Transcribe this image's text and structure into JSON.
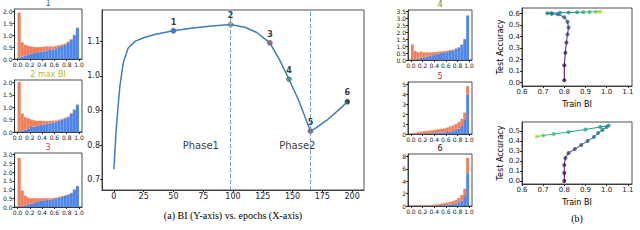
{
  "chart_data": [
    {
      "type": "histogram",
      "title": "1",
      "color": "#2255cc",
      "stacked": true,
      "bins": [
        0,
        0.05,
        0.1,
        0.15,
        0.2,
        0.25,
        0.3,
        0.35,
        0.4,
        0.45,
        0.5,
        0.55,
        0.6,
        0.65,
        0.7,
        0.75,
        0.8,
        0.85,
        0.9,
        0.95,
        1
      ],
      "series": [
        {
          "color": "#4f86e8",
          "values": [
            0.05,
            0.1,
            0.15,
            0.2,
            0.22,
            0.25,
            0.28,
            0.3,
            0.32,
            0.35,
            0.38,
            0.4,
            0.45,
            0.5,
            0.55,
            0.6,
            0.7,
            0.8,
            1.0,
            1.3
          ]
        },
        {
          "color": "#f07f5a",
          "values": [
            1.9,
            0.6,
            0.45,
            0.35,
            0.3,
            0.25,
            0.22,
            0.2,
            0.2,
            0.18,
            0.15,
            0.12,
            0.1,
            0.08,
            0.06,
            0.05,
            0.04,
            0.03,
            0.02,
            0.02
          ]
        }
      ],
      "xlim": [
        -0.05,
        1.05
      ],
      "xticks": [
        {
          "value": 0,
          "label": "0.0"
        },
        0.2,
        0.4,
        0.6,
        0.8,
        {
          "value": 1,
          "label": "1.0"
        }
      ],
      "ylim": [
        0,
        2.1
      ],
      "yticks": [
        {
          "value": 0,
          "label": "0.0"
        },
        0.5,
        {
          "value": 1,
          "label": "1.0"
        },
        1.5,
        {
          "value": 2,
          "label": "2.0"
        }
      ]
    },
    {
      "type": "histogram",
      "title": "2 max BI",
      "color": "#b8b52a",
      "stacked": true,
      "bins": [
        0,
        0.05,
        0.1,
        0.15,
        0.2,
        0.25,
        0.3,
        0.35,
        0.4,
        0.45,
        0.5,
        0.55,
        0.6,
        0.65,
        0.7,
        0.75,
        0.8,
        0.85,
        0.9,
        0.95,
        1
      ],
      "series": [
        {
          "color": "#4f86e8",
          "values": [
            0.02,
            0.05,
            0.1,
            0.15,
            0.2,
            0.22,
            0.25,
            0.28,
            0.3,
            0.32,
            0.35,
            0.38,
            0.4,
            0.45,
            0.5,
            0.55,
            0.6,
            0.75,
            0.9,
            1.1
          ]
        },
        {
          "color": "#f07f5a",
          "values": [
            2.0,
            0.7,
            0.5,
            0.4,
            0.3,
            0.25,
            0.2,
            0.18,
            0.15,
            0.12,
            0.1,
            0.08,
            0.06,
            0.05,
            0.04,
            0.03,
            0.02,
            0.02,
            0.01,
            0.01
          ]
        }
      ],
      "xlim": [
        -0.05,
        1.05
      ],
      "xticks": [
        {
          "value": 0,
          "label": "0.0"
        },
        0.2,
        0.4,
        0.6,
        0.8,
        {
          "value": 1,
          "label": "1.0"
        }
      ],
      "ylim": [
        0,
        2.1
      ],
      "yticks": [
        {
          "value": 0,
          "label": "0.0"
        },
        0.5,
        {
          "value": 1,
          "label": "1.0"
        },
        1.5,
        {
          "value": 2,
          "label": "2.0"
        }
      ]
    },
    {
      "type": "histogram",
      "title": "3",
      "color": "#e0403a",
      "stacked": true,
      "bins": [
        0,
        0.05,
        0.1,
        0.15,
        0.2,
        0.25,
        0.3,
        0.35,
        0.4,
        0.45,
        0.5,
        0.55,
        0.6,
        0.65,
        0.7,
        0.75,
        0.8,
        0.85,
        0.9,
        0.95,
        1
      ],
      "series": [
        {
          "color": "#4f86e8",
          "values": [
            0.02,
            0.05,
            0.1,
            0.15,
            0.2,
            0.25,
            0.3,
            0.35,
            0.38,
            0.4,
            0.42,
            0.45,
            0.5,
            0.55,
            0.6,
            0.65,
            0.7,
            0.8,
            1.0,
            1.2
          ]
        },
        {
          "color": "#f07f5a",
          "values": [
            2.8,
            0.9,
            0.55,
            0.4,
            0.3,
            0.25,
            0.2,
            0.15,
            0.12,
            0.1,
            0.08,
            0.06,
            0.05,
            0.04,
            0.03,
            0.02,
            0.02,
            0.01,
            0.01,
            0.01
          ]
        }
      ],
      "xlim": [
        -0.05,
        1.05
      ],
      "xticks": [
        {
          "value": 0,
          "label": "0.0"
        },
        0.2,
        0.4,
        0.6,
        0.8,
        {
          "value": 1,
          "label": "1.0"
        }
      ],
      "ylim": [
        0,
        3.1
      ],
      "yticks": [
        {
          "value": 0,
          "label": "0.0"
        },
        0.5,
        {
          "value": 1,
          "label": "1.0"
        },
        1.5,
        {
          "value": 2,
          "label": "2.0"
        },
        2.5,
        {
          "value": 3,
          "label": "3.0"
        }
      ]
    },
    {
      "type": "line",
      "xlabel": "(a) BI (Y-axis) vs. epochs (X-axis)",
      "color": "#3b7dbf",
      "line_style": "solid",
      "x": [
        0,
        2,
        5,
        8,
        12,
        18,
        25,
        35,
        50,
        65,
        80,
        98,
        110,
        120,
        131,
        140,
        147,
        155,
        160,
        165,
        170,
        180,
        190,
        196
      ],
      "values": [
        0.73,
        0.85,
        0.97,
        1.04,
        1.08,
        1.1,
        1.11,
        1.12,
        1.13,
        1.137,
        1.143,
        1.148,
        1.14,
        1.125,
        1.095,
        1.04,
        0.99,
        0.93,
        0.885,
        0.84,
        0.85,
        0.875,
        0.905,
        0.925
      ],
      "points": [
        {
          "label": "1",
          "x": 50,
          "y": 1.13,
          "color": "#2255cc"
        },
        {
          "label": "2",
          "x": 98,
          "y": 1.148,
          "color": "#b8b52a"
        },
        {
          "label": "3",
          "x": 131,
          "y": 1.095,
          "color": "#e0403a"
        },
        {
          "label": "4",
          "x": 147,
          "y": 0.99,
          "color": "#3da23d"
        },
        {
          "label": "5",
          "x": 165,
          "y": 0.84,
          "color": "#c0392b"
        },
        {
          "label": "6",
          "x": 196,
          "y": 0.925,
          "color": "#111111"
        }
      ],
      "vlines": [
        98,
        165
      ],
      "annotations": [
        {
          "text": "Phase1",
          "x": 73,
          "y": 0.8
        },
        {
          "text": "Phase2",
          "x": 154,
          "y": 0.8
        }
      ],
      "xlim": [
        -10,
        210
      ],
      "xticks": [
        0,
        25,
        50,
        75,
        100,
        125,
        150,
        175,
        200
      ],
      "ylim": [
        0.67,
        1.19
      ],
      "yticks": [
        0.7,
        0.8,
        0.9,
        {
          "value": 1,
          "label": "1.0"
        },
        1.1
      ]
    },
    {
      "type": "histogram",
      "title": "4",
      "color": "#3da23d",
      "stacked": true,
      "bins": [
        0,
        0.05,
        0.1,
        0.15,
        0.2,
        0.25,
        0.3,
        0.35,
        0.4,
        0.45,
        0.5,
        0.55,
        0.6,
        0.65,
        0.7,
        0.75,
        0.8,
        0.85,
        0.9,
        0.95,
        1
      ],
      "series": [
        {
          "color": "#4f86e8",
          "values": [
            0.02,
            0.05,
            0.1,
            0.15,
            0.2,
            0.25,
            0.3,
            0.35,
            0.4,
            0.45,
            0.5,
            0.55,
            0.6,
            0.65,
            0.7,
            0.8,
            0.9,
            1.1,
            1.5,
            3.2
          ]
        },
        {
          "color": "#f07f5a",
          "values": [
            1.1,
            0.6,
            0.45,
            0.45,
            0.35,
            0.3,
            0.25,
            0.2,
            0.18,
            0.15,
            0.12,
            0.1,
            0.08,
            0.06,
            0.05,
            0.04,
            0.03,
            0.02,
            0.02,
            0.01
          ]
        }
      ],
      "xlim": [
        -0.05,
        1.05
      ],
      "xticks": [
        {
          "value": 0,
          "label": "0.0"
        },
        0.2,
        0.4,
        0.6,
        0.8,
        {
          "value": 1,
          "label": "1.0"
        }
      ],
      "ylim": [
        0,
        3.6
      ],
      "yticks": [
        {
          "value": 0,
          "label": "0.0"
        },
        0.5,
        {
          "value": 1,
          "label": "1.0"
        },
        1.5,
        {
          "value": 2,
          "label": "2.0"
        },
        2.5,
        {
          "value": 3,
          "label": "3.0"
        },
        3.5
      ]
    },
    {
      "type": "histogram",
      "title": "5",
      "color": "#c0392b",
      "stacked": true,
      "bins": [
        0,
        0.05,
        0.1,
        0.15,
        0.2,
        0.25,
        0.3,
        0.35,
        0.4,
        0.45,
        0.5,
        0.55,
        0.6,
        0.65,
        0.7,
        0.75,
        0.8,
        0.85,
        0.9,
        0.95,
        1
      ],
      "series": [
        {
          "color": "#4f86e8",
          "values": [
            0.01,
            0.02,
            0.03,
            0.04,
            0.05,
            0.06,
            0.07,
            0.08,
            0.1,
            0.12,
            0.14,
            0.16,
            0.2,
            0.25,
            0.3,
            0.4,
            0.55,
            0.8,
            1.4,
            3.9
          ]
        },
        {
          "color": "#f07f5a",
          "values": [
            0.05,
            0.1,
            0.15,
            0.2,
            0.22,
            0.25,
            0.28,
            0.3,
            0.32,
            0.35,
            0.38,
            0.4,
            0.45,
            0.5,
            0.55,
            0.6,
            0.65,
            0.7,
            0.75,
            0.9
          ]
        }
      ],
      "xlim": [
        -0.05,
        1.05
      ],
      "xticks": [
        {
          "value": 0,
          "label": "0.0"
        },
        0.2,
        0.4,
        0.6,
        0.8,
        {
          "value": 1,
          "label": "1.0"
        }
      ],
      "ylim": [
        0,
        5.2
      ],
      "yticks": [
        0,
        1,
        2,
        3,
        4,
        5
      ]
    },
    {
      "type": "histogram",
      "title": "6",
      "color": "#111111",
      "stacked": true,
      "bins": [
        0,
        0.05,
        0.1,
        0.15,
        0.2,
        0.25,
        0.3,
        0.35,
        0.4,
        0.45,
        0.5,
        0.55,
        0.6,
        0.65,
        0.7,
        0.75,
        0.8,
        0.85,
        0.9,
        0.95,
        1
      ],
      "series": [
        {
          "color": "#4f86e8",
          "values": [
            0,
            0.01,
            0.01,
            0.02,
            0.03,
            0.04,
            0.05,
            0.06,
            0.08,
            0.1,
            0.12,
            0.15,
            0.2,
            0.25,
            0.3,
            0.4,
            0.6,
            0.9,
            1.6,
            5.3
          ]
        },
        {
          "color": "#f07f5a",
          "values": [
            0.02,
            0.03,
            0.05,
            0.07,
            0.08,
            0.1,
            0.12,
            0.15,
            0.18,
            0.2,
            0.25,
            0.3,
            0.35,
            0.4,
            0.5,
            0.6,
            0.7,
            0.9,
            1.2,
            2.5
          ]
        }
      ],
      "xlim": [
        -0.05,
        1.05
      ],
      "xticks": [
        {
          "value": 0,
          "label": "0.0"
        },
        0.2,
        0.4,
        0.6,
        0.8,
        {
          "value": 1,
          "label": "1.0"
        }
      ],
      "ylim": [
        0,
        8.4
      ],
      "yticks": [
        0,
        2,
        4,
        6,
        8
      ]
    },
    {
      "type": "scatter",
      "marker": "circle",
      "line_style": "solid",
      "xlabel": "Train BI",
      "ylabel": "Test Accuracy",
      "x": [
        0.8,
        0.8,
        0.805,
        0.81,
        0.815,
        0.82,
        0.815,
        0.8,
        0.77,
        0.74,
        0.72,
        0.74,
        0.78,
        0.82,
        0.86,
        0.89,
        0.92,
        0.95,
        0.97
      ],
      "values": [
        0.02,
        0.15,
        0.26,
        0.35,
        0.42,
        0.48,
        0.53,
        0.57,
        0.595,
        0.6,
        0.605,
        0.605,
        0.608,
        0.61,
        0.612,
        0.614,
        0.615,
        0.617,
        0.618
      ],
      "colors": [
        "#440154",
        "#471164",
        "#481f70",
        "#472d7b",
        "#443a83",
        "#404688",
        "#3b528b",
        "#365d8d",
        "#31688e",
        "#2c728e",
        "#287c8e",
        "#24868e",
        "#21908d",
        "#1f9a8a",
        "#22a785",
        "#2fb47c",
        "#44bf70",
        "#6ece58",
        "#b5de2b"
      ],
      "xlim": [
        0.6,
        1.12
      ],
      "xticks": [
        0.6,
        0.7,
        0.8,
        0.9,
        {
          "value": 1,
          "label": "1.0"
        },
        1.1
      ],
      "ylim": [
        -0.03,
        0.65
      ],
      "yticks": [
        {
          "value": 0,
          "label": "0.0"
        },
        0.1,
        0.2,
        0.3,
        0.4,
        0.5,
        0.6
      ]
    },
    {
      "type": "scatter",
      "title": "(b)",
      "marker": "circle",
      "line_style": "solid",
      "xlabel": "Train BI",
      "ylabel": "Test Accuracy",
      "x": [
        0.8,
        0.8,
        0.8,
        0.805,
        0.82,
        0.85,
        0.88,
        0.91,
        0.94,
        0.96,
        0.98,
        1.0,
        1.01,
        0.97,
        0.9,
        0.82,
        0.75,
        0.7,
        0.67
      ],
      "values": [
        0,
        0.08,
        0.16,
        0.23,
        0.28,
        0.32,
        0.36,
        0.4,
        0.44,
        0.48,
        0.51,
        0.54,
        0.555,
        0.54,
        0.515,
        0.49,
        0.47,
        0.455,
        0.445
      ],
      "colors": [
        "#440154",
        "#471164",
        "#481f70",
        "#472d7b",
        "#443a83",
        "#404688",
        "#3b528b",
        "#365d8d",
        "#31688e",
        "#2c728e",
        "#287c8e",
        "#24868e",
        "#21908d",
        "#1f9a8a",
        "#22a785",
        "#2fb47c",
        "#44bf70",
        "#6ece58",
        "#b5de2b"
      ],
      "xlim": [
        0.6,
        1.12
      ],
      "xticks": [
        0.6,
        0.7,
        0.8,
        0.9,
        {
          "value": 1,
          "label": "1.0"
        },
        1.1
      ],
      "ylim": [
        -0.03,
        0.59
      ],
      "yticks": [
        {
          "value": 0,
          "label": "0.0"
        },
        0.1,
        0.2,
        0.3,
        0.4,
        0.5
      ]
    }
  ]
}
